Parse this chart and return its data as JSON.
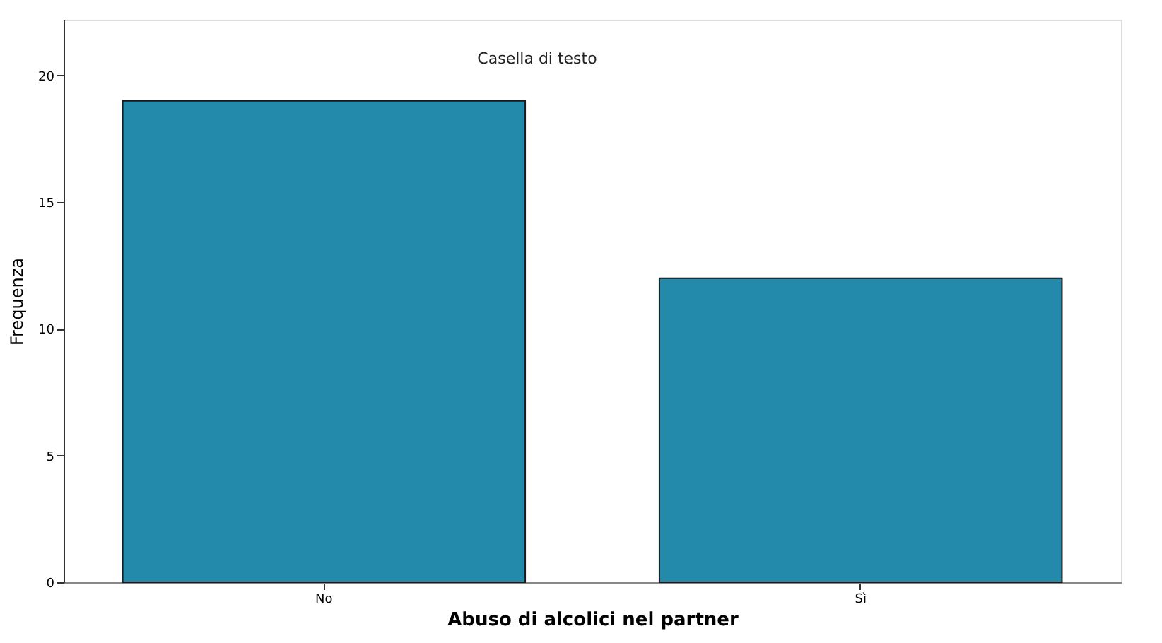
{
  "chart_data": {
    "type": "bar",
    "xlabel": "Abuso di alcolici nel partner",
    "ylabel": "Frequenza",
    "categories": [
      "No",
      "Sì"
    ],
    "values": [
      19,
      12
    ],
    "color": "#248aab",
    "ylim": [
      0,
      22.2
    ],
    "yticks": [
      0,
      5,
      10,
      15,
      20
    ],
    "grid": false,
    "annotations": [
      "Casella di testo"
    ]
  }
}
